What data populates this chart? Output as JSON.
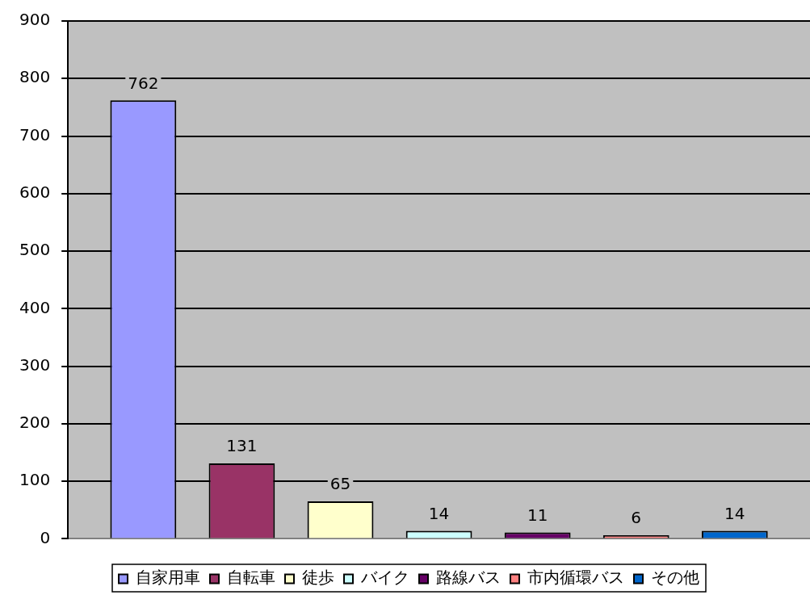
{
  "chart_data": {
    "type": "bar",
    "categories": [
      null
    ],
    "series": [
      {
        "name": "自家用車",
        "color": "#9999ff",
        "values": [
          762
        ]
      },
      {
        "name": "自転車",
        "color": "#993366",
        "values": [
          131
        ]
      },
      {
        "name": "徒歩",
        "color": "#ffffcc",
        "values": [
          65
        ]
      },
      {
        "name": "バイク",
        "color": "#ccffff",
        "values": [
          14
        ]
      },
      {
        "name": "路線バス",
        "color": "#660066",
        "values": [
          11
        ]
      },
      {
        "name": "市内循環バス",
        "color": "#ff8080",
        "values": [
          6
        ]
      },
      {
        "name": "その他",
        "color": "#0066cc",
        "values": [
          14
        ]
      }
    ],
    "ylim": [
      0,
      900
    ],
    "yticks": [
      0,
      100,
      200,
      300,
      400,
      500,
      600,
      700,
      800,
      900
    ],
    "grid": "y",
    "legend": "bottom",
    "data_labels": true
  }
}
